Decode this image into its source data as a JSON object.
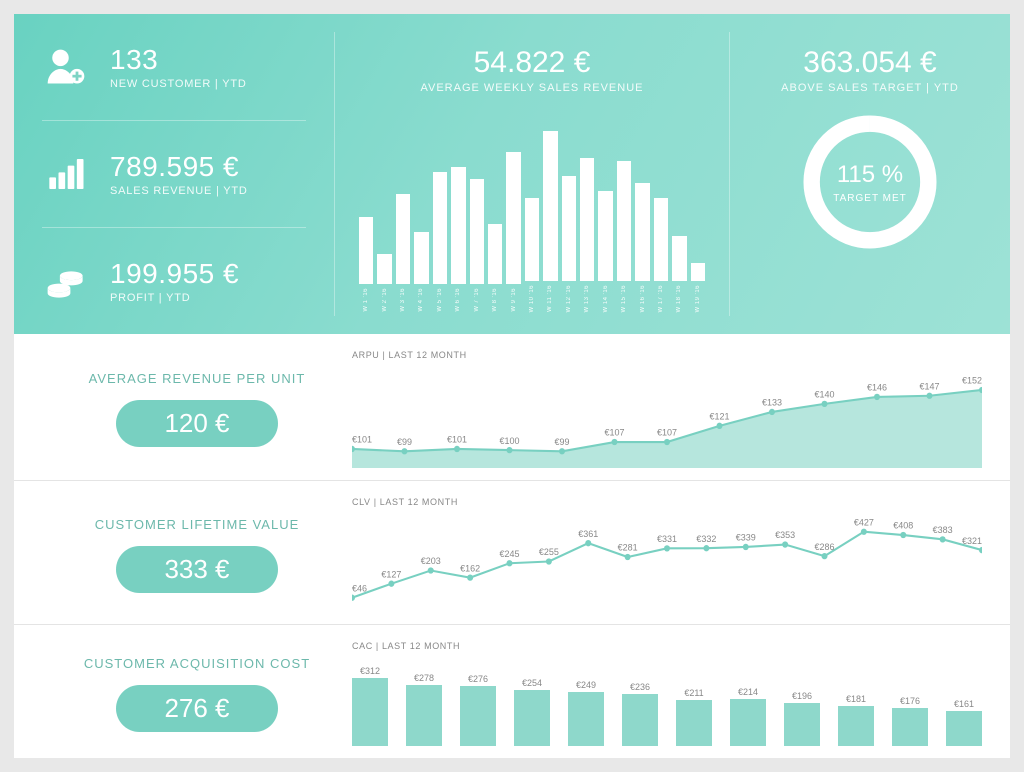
{
  "colors": {
    "teal_grad_from": "#69d2c1",
    "teal_grad_to": "#9de2d6",
    "teal_accent": "#78d0c1",
    "teal_light": "#8ed8cb",
    "teal_text": "#6cb8ab",
    "bar_fill": "#ffffff",
    "area_fill": "#b6e6dd",
    "line_stroke": "#78d0c1",
    "body_bg": "#e8e8e8",
    "divider": "#e4e4e4",
    "muted_text": "#888888"
  },
  "header": {
    "kpis": [
      {
        "icon": "user-plus",
        "value": "133",
        "label": "NEW CUSTOMER | YTD"
      },
      {
        "icon": "bars",
        "value": "789.595 €",
        "label": "SALES REVENUE | YTD"
      },
      {
        "icon": "coins",
        "value": "199.955 €",
        "label": "PROFIT | YTD"
      }
    ],
    "weekly_sales": {
      "value": "54.822 €",
      "label": "AVERAGE WEEKLY SALES REVENUE",
      "type": "bar",
      "bar_color": "#ffffff",
      "ylim": [
        0,
        100
      ],
      "bars": [
        {
          "label": "W 1 '16",
          "v": 45
        },
        {
          "label": "W 2 '16",
          "v": 20
        },
        {
          "label": "W 3 '16",
          "v": 60
        },
        {
          "label": "W 4 '16",
          "v": 35
        },
        {
          "label": "W 5 '16",
          "v": 75
        },
        {
          "label": "W 6 '16",
          "v": 78
        },
        {
          "label": "W 7 '16",
          "v": 70
        },
        {
          "label": "W 8 '16",
          "v": 40
        },
        {
          "label": "W 9 '16",
          "v": 88
        },
        {
          "label": "W 10 '16",
          "v": 55
        },
        {
          "label": "W 11 '16",
          "v": 100
        },
        {
          "label": "W 12 '16",
          "v": 70
        },
        {
          "label": "W 13 '16",
          "v": 82
        },
        {
          "label": "W 14 '16",
          "v": 60
        },
        {
          "label": "W 15 '16",
          "v": 80
        },
        {
          "label": "W 16 '16",
          "v": 65
        },
        {
          "label": "W 17 '16",
          "v": 55
        },
        {
          "label": "W 18 '16",
          "v": 30
        },
        {
          "label": "W 19 '16",
          "v": 12
        }
      ]
    },
    "target": {
      "value": "363.054 €",
      "label": "ABOVE SALES TARGET | YTD",
      "pct_text": "115 %",
      "sub": "TARGET MET",
      "ring_stroke": "#ffffff",
      "ring_track": "rgba(255,255,255,0.25)",
      "pct": 100
    }
  },
  "rows": [
    {
      "title": "AVERAGE REVENUE PER UNIT",
      "pill": "120 €",
      "chart_title": "ARPU | LAST 12 MONTH",
      "type": "area",
      "area_fill": "#b6e6dd",
      "line_stroke": "#78d0c1",
      "point_color": "#78d0c1",
      "label_color": "#888888",
      "ylim": [
        90,
        160
      ],
      "data": [
        101,
        99,
        101,
        100,
        99,
        107,
        107,
        121,
        133,
        140,
        146,
        147,
        152
      ],
      "labels": [
        "€101",
        "€99",
        "€101",
        "€100",
        "€99",
        "€107",
        "€107",
        "€121",
        "€133",
        "€140",
        "€146",
        "€147",
        "€152"
      ]
    },
    {
      "title": "CUSTOMER LIFETIME VALUE",
      "pill": "333 €",
      "chart_title": "CLV | LAST 12 MONTH",
      "type": "line",
      "line_stroke": "#78d0c1",
      "point_color": "#78d0c1",
      "label_color": "#888888",
      "ylim": [
        0,
        450
      ],
      "data": [
        46,
        127,
        203,
        162,
        245,
        255,
        361,
        281,
        331,
        332,
        339,
        353,
        286,
        427,
        408,
        383,
        321
      ],
      "labels": [
        "€46",
        "€127",
        "€203",
        "€162",
        "€245",
        "€255",
        "€361",
        "€281",
        "€331",
        "€332",
        "€339",
        "€353",
        "€286",
        "€427",
        "€408",
        "€383",
        "€321"
      ]
    },
    {
      "title": "CUSTOMER ACQUISITION COST",
      "pill": "276 €",
      "chart_title": "CAC | LAST 12 MONTH",
      "type": "bar",
      "bar_color": "#8ed8cb",
      "label_color": "#888888",
      "ylim": [
        0,
        320
      ],
      "data": [
        312,
        278,
        276,
        254,
        249,
        236,
        211,
        214,
        196,
        181,
        176,
        161
      ],
      "labels": [
        "€312",
        "€278",
        "€276",
        "€254",
        "€249",
        "€236",
        "€211",
        "€214",
        "€196",
        "€181",
        "€176",
        "€161"
      ]
    }
  ]
}
